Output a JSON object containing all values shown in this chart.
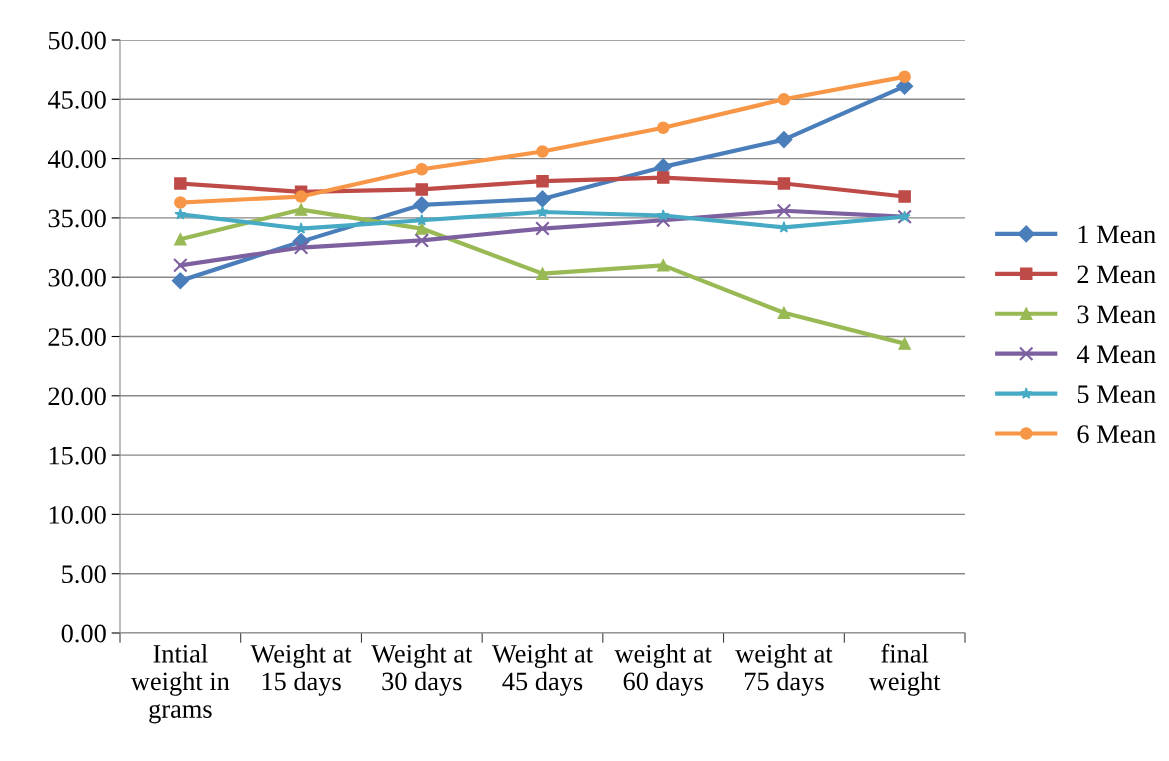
{
  "chart_data": {
    "type": "line",
    "categories": [
      "Intial\nweight in\ngrams",
      "Weight at\n15 days",
      "Weight at\n30 days",
      "Weight at\n45 days",
      "weight at\n60 days",
      "weight at\n75 days",
      "final\nweight"
    ],
    "series": [
      {
        "name": "1 Mean",
        "color": "#4a7ebb",
        "marker": "diamond",
        "values": [
          29.7,
          33.0,
          36.1,
          36.6,
          39.3,
          41.6,
          46.1
        ]
      },
      {
        "name": "2 Mean",
        "color": "#be4b48",
        "marker": "square",
        "values": [
          37.9,
          37.2,
          37.4,
          38.1,
          38.4,
          37.9,
          36.8
        ]
      },
      {
        "name": "3 Mean",
        "color": "#98b954",
        "marker": "triangle",
        "values": [
          33.2,
          35.7,
          34.1,
          30.3,
          31.0,
          27.0,
          24.4
        ]
      },
      {
        "name": "4 Mean",
        "color": "#7d60a0",
        "marker": "cross",
        "values": [
          31.0,
          32.5,
          33.1,
          34.1,
          34.8,
          35.6,
          35.1
        ]
      },
      {
        "name": "5 Mean",
        "color": "#46aac5",
        "marker": "star",
        "values": [
          35.3,
          34.1,
          34.8,
          35.5,
          35.2,
          34.2,
          35.1
        ]
      },
      {
        "name": "6 Mean",
        "color": "#f79646",
        "marker": "circle",
        "values": [
          36.3,
          36.8,
          39.1,
          40.6,
          42.6,
          45.0,
          46.9
        ]
      }
    ],
    "ylim": [
      0,
      50
    ],
    "yticks": [
      {
        "value": 0,
        "label": "0.00"
      },
      {
        "value": 5,
        "label": "5.00"
      },
      {
        "value": 10,
        "label": "10.00"
      },
      {
        "value": 15,
        "label": "15.00"
      },
      {
        "value": 20,
        "label": "20.00"
      },
      {
        "value": 25,
        "label": "25.00"
      },
      {
        "value": 30,
        "label": "30.00"
      },
      {
        "value": 35,
        "label": "35.00"
      },
      {
        "value": 40,
        "label": "40.00"
      },
      {
        "value": 45,
        "label": "45.00"
      },
      {
        "value": 50,
        "label": "50.00"
      }
    ],
    "grid": "y",
    "legend": "right",
    "line_style": "solid"
  }
}
